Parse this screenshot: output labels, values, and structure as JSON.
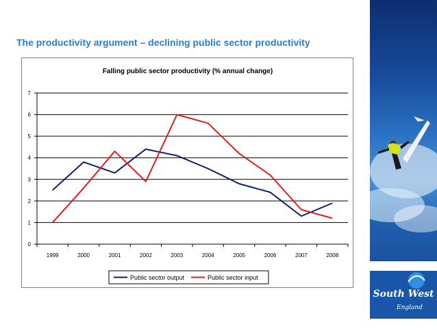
{
  "slide": {
    "title": "The productivity argument – declining public sector productivity"
  },
  "logo": {
    "name": "South West England"
  },
  "colors": {
    "title": "#2c7bd2",
    "output": "#0a1f6b",
    "input": "#e01c1c",
    "grid": "#000000",
    "panel": "#17489a"
  },
  "chart_data": {
    "type": "line",
    "title": "Falling public sector productivity (% annual change)",
    "xlabel": "",
    "ylabel": "",
    "categories": [
      "1999",
      "2000",
      "2001",
      "2002",
      "2003",
      "2004",
      "2005",
      "2006",
      "2007",
      "2008"
    ],
    "yticks": [
      "0",
      "1",
      "2",
      "3",
      "4",
      "5",
      "6",
      "7"
    ],
    "ylim": [
      0,
      7
    ],
    "grid": true,
    "legend_position": "bottom",
    "series": [
      {
        "name": "Public sector output",
        "color": "#0a1f6b",
        "values": [
          2.5,
          3.8,
          3.3,
          4.4,
          4.1,
          3.5,
          2.8,
          2.4,
          1.3,
          1.9
        ]
      },
      {
        "name": "Public sector input",
        "color": "#e01c1c",
        "values": [
          1.0,
          2.6,
          4.3,
          2.9,
          6.0,
          5.6,
          4.2,
          3.2,
          1.6,
          1.2
        ]
      }
    ]
  }
}
